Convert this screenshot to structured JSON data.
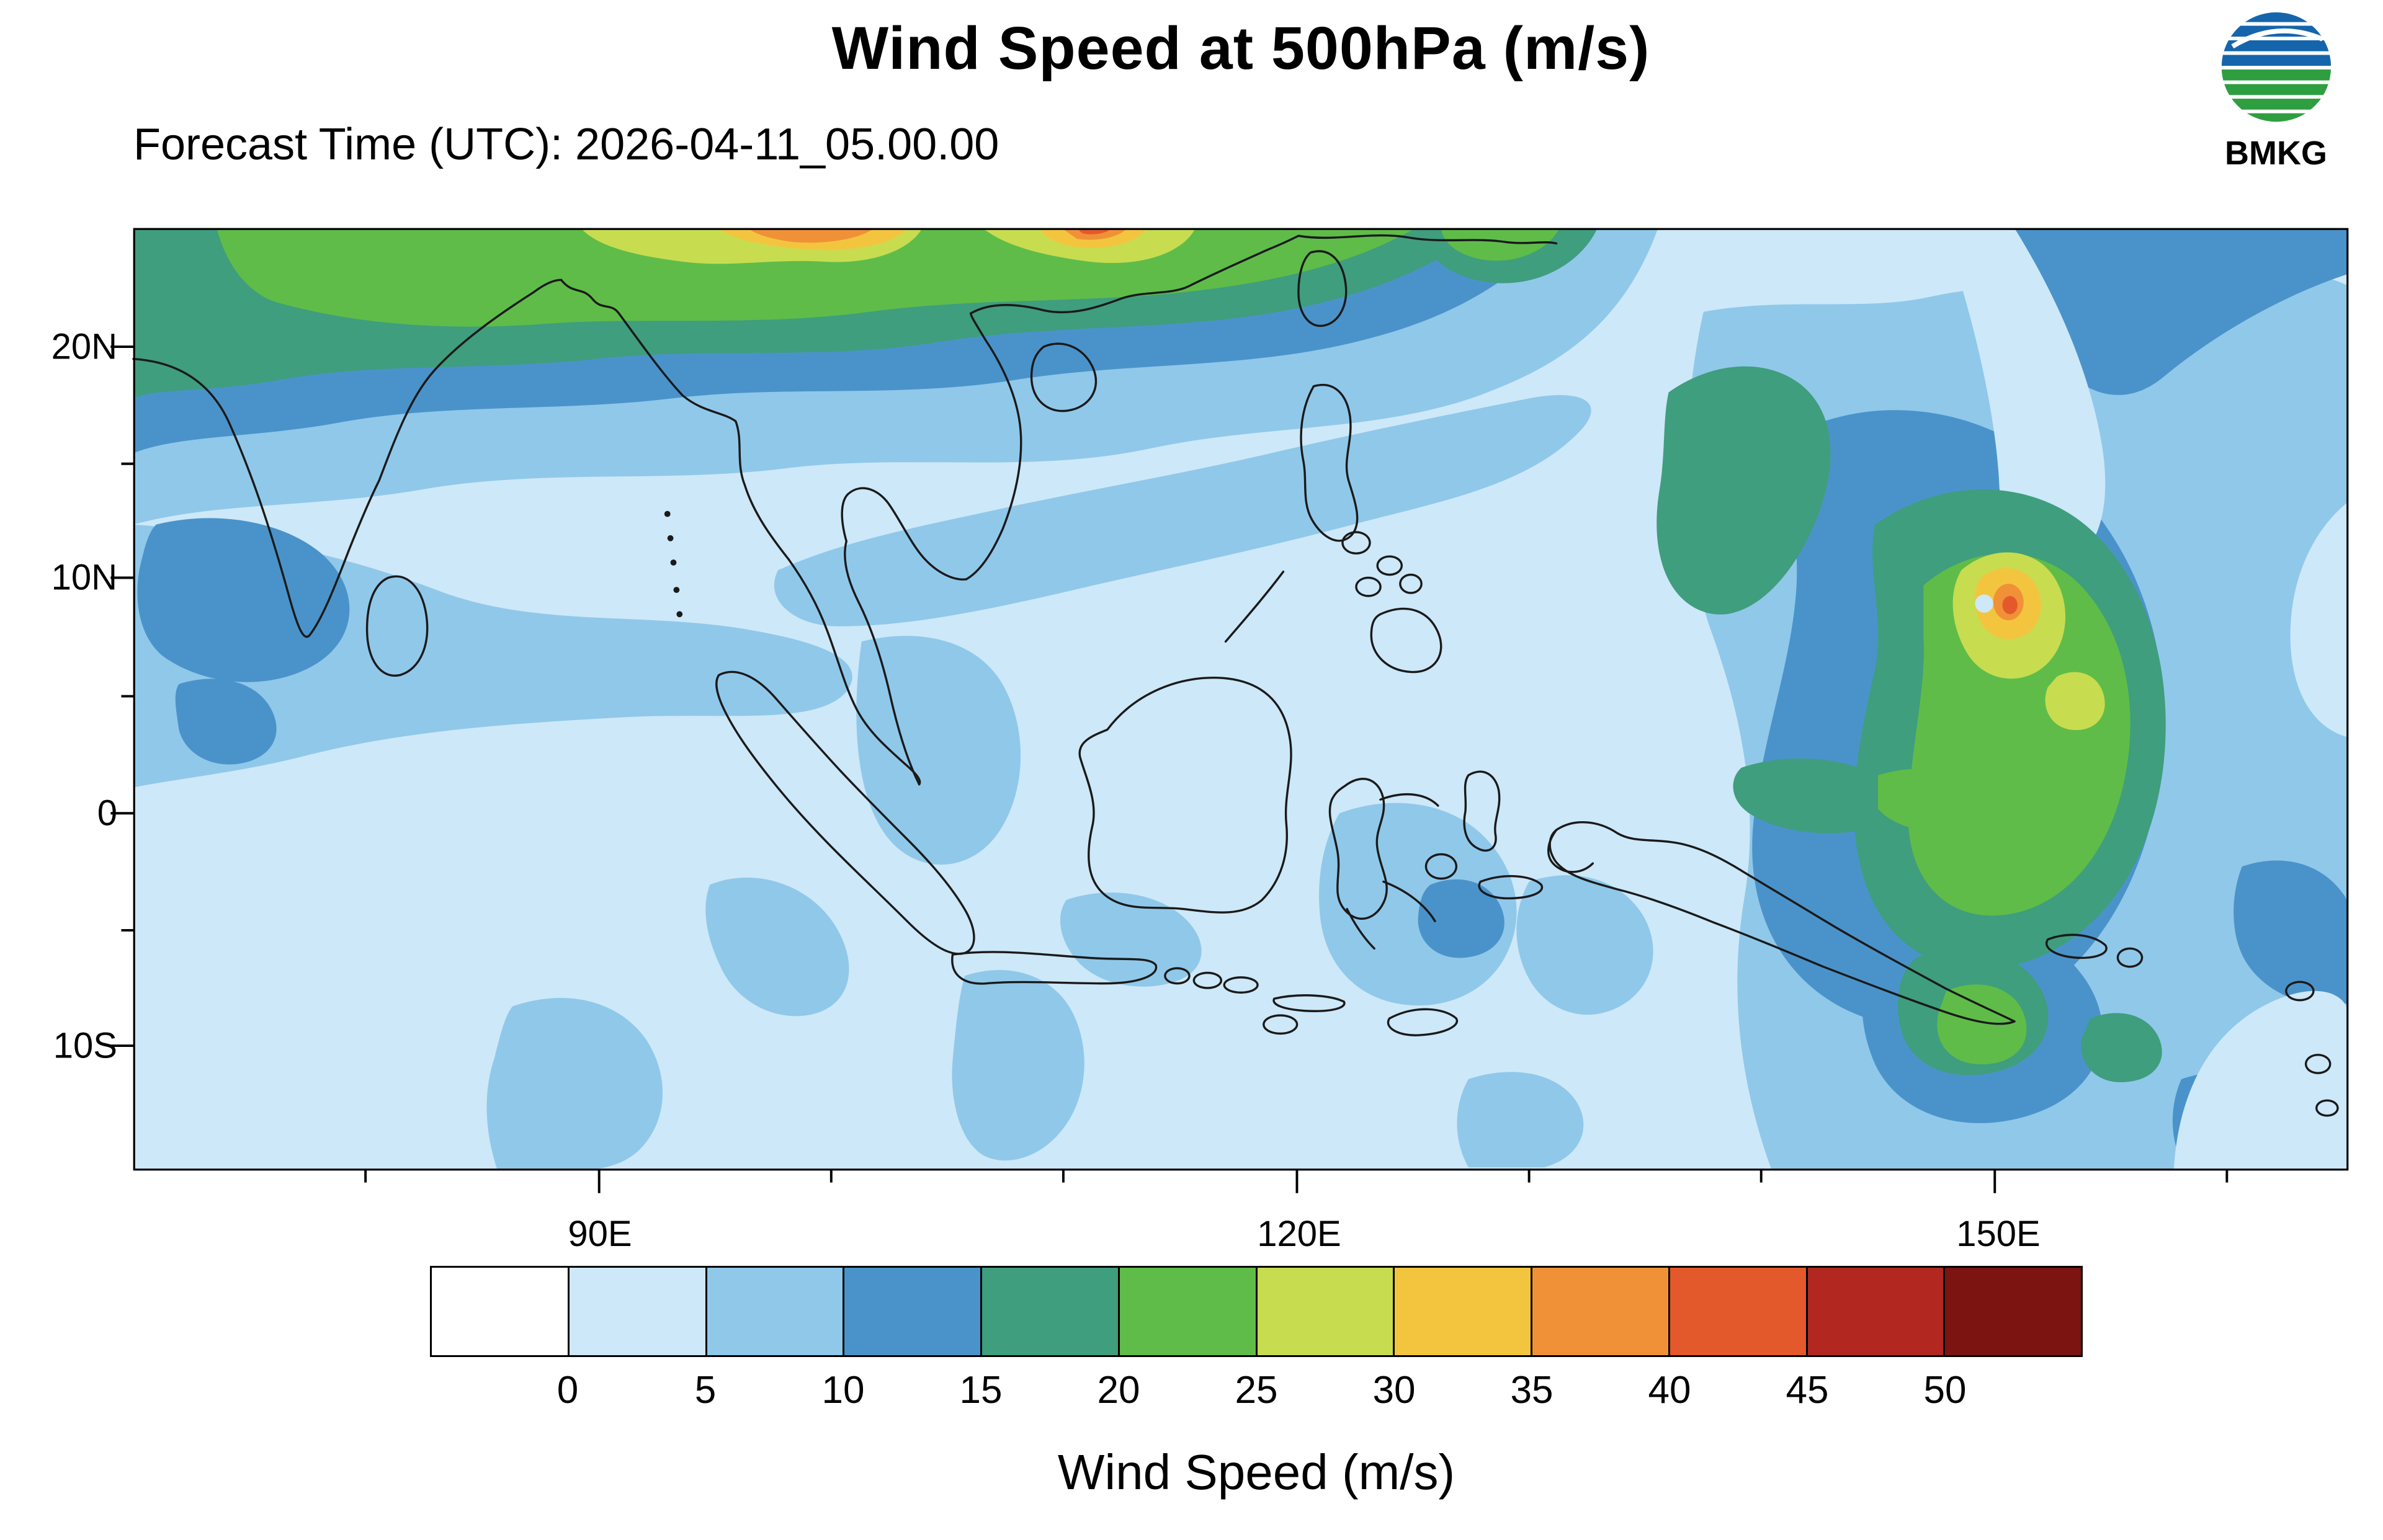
{
  "header": {
    "title": "Wind Speed at 500hPa (m/s)",
    "forecast_time": "Forecast Time (UTC): 2026-04-11_05.00.00",
    "agency": "BMKG",
    "logo_colors": {
      "blue": "#1565ad",
      "green": "#2f9e41"
    }
  },
  "map": {
    "lat_ticks": [
      "20N",
      "10N",
      "0",
      "10S"
    ],
    "lon_ticks": [
      "90E",
      "120E",
      "150E"
    ]
  },
  "colorbar": {
    "label": "Wind Speed (m/s)",
    "ticks": [
      "0",
      "5",
      "10",
      "15",
      "20",
      "25",
      "30",
      "35",
      "40",
      "45",
      "50"
    ],
    "colors": [
      "#ffffff",
      "#cde8f8",
      "#90c8ea",
      "#4a93ca",
      "#3f9e7d",
      "#5fbc49",
      "#c8dc50",
      "#f3c53e",
      "#f09137",
      "#e4592b",
      "#b22820",
      "#7c1412"
    ]
  },
  "chart_data": {
    "type": "heatmap",
    "title": "Wind Speed at 500hPa (m/s)",
    "subtitle": "Forecast Time (UTC): 2026-04-11_05.00.00",
    "variable": "wind_speed",
    "pressure_level_hPa": 500,
    "units": "m/s",
    "x_axis": {
      "tick_labels": [
        "90E",
        "120E",
        "150E"
      ],
      "lon_range_deg_east": [
        70,
        165
      ]
    },
    "y_axis": {
      "tick_labels": [
        "20N",
        "10N",
        "0",
        "10S"
      ],
      "lat_range_deg_north": [
        -15,
        25
      ]
    },
    "contour_levels_ms": [
      0,
      5,
      10,
      15,
      20,
      25,
      30,
      35,
      40,
      45,
      50
    ],
    "palette_hex": [
      "#ffffff",
      "#cde8f8",
      "#90c8ea",
      "#4a93ca",
      "#3f9e7d",
      "#5fbc49",
      "#c8dc50",
      "#f3c53e",
      "#f09137",
      "#e4592b",
      "#b22820",
      "#7c1412"
    ],
    "legend": {
      "label": "Wind Speed (m/s)",
      "position": "bottom"
    },
    "grid_sample": {
      "lons_deg_east": [
        75,
        85,
        95,
        105,
        115,
        125,
        135,
        145,
        155,
        165
      ],
      "lats_deg_north": [
        25,
        20,
        15,
        10,
        5,
        0,
        -5,
        -10,
        -15
      ],
      "wind_speed_ms": [
        [
          18,
          28,
          35,
          30,
          22,
          8,
          5,
          8,
          10,
          12
        ],
        [
          12,
          15,
          18,
          17,
          12,
          3,
          8,
          8,
          6,
          8
        ],
        [
          8,
          5,
          8,
          8,
          8,
          3,
          12,
          12,
          12,
          6
        ],
        [
          12,
          8,
          5,
          3,
          3,
          3,
          12,
          30,
          16,
          8
        ],
        [
          8,
          3,
          3,
          3,
          3,
          3,
          8,
          22,
          18,
          12
        ],
        [
          5,
          3,
          3,
          5,
          3,
          3,
          12,
          22,
          12,
          12
        ],
        [
          3,
          3,
          3,
          3,
          3,
          5,
          8,
          12,
          8,
          8
        ],
        [
          3,
          5,
          3,
          5,
          8,
          3,
          8,
          18,
          12,
          5
        ],
        [
          3,
          5,
          3,
          3,
          5,
          5,
          8,
          12,
          8,
          3
        ]
      ]
    },
    "features": [
      {
        "name": "subtropical-jet",
        "description": "Band of 20-40+ m/s winds along the northern edge (22-25N) from 80E to 120E, peaking above 40 m/s near 103E and 110E"
      },
      {
        "name": "tropical-cyclone",
        "description": "Closed circulation near 9N 150E with core winds above 40 m/s, surrounded by 15-30 m/s ring extending toward the equator"
      },
      {
        "name": "bay-of-bengal-band",
        "description": "10-15 m/s band near 10-13N across southern India and the Bay of Bengal"
      },
      {
        "name": "maritime-continent-calm",
        "description": "Winds mostly below 5 m/s over Indonesia and surrounding seas"
      },
      {
        "name": "papua-pocket",
        "description": "15-25 m/s pocket near 5-8S around 146-152E north of New Guinea"
      }
    ]
  }
}
